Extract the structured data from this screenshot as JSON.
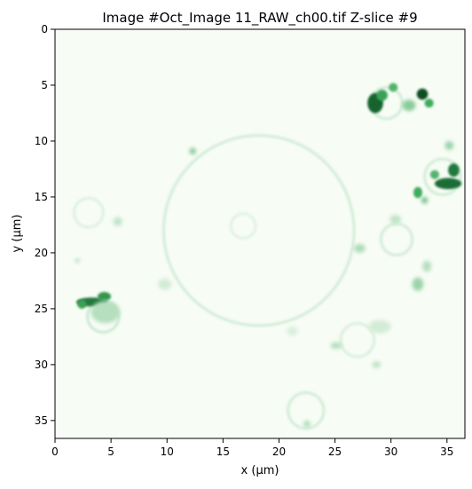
{
  "title": "Image #Oct_Image 11_RAW_ch00.tif Z-slice #9",
  "colormap": {
    "low": "#f7fcf5",
    "high": "#00441b",
    "mid": "#41ab5d"
  },
  "x_axis": {
    "label": "x (μm)",
    "range": [
      0,
      36.6
    ],
    "ticks": [
      0,
      5,
      10,
      15,
      20,
      25,
      30,
      35
    ]
  },
  "y_axis": {
    "label": "y (μm)",
    "range": [
      36.6,
      0
    ],
    "inverted": true,
    "ticks": [
      0,
      5,
      10,
      15,
      20,
      25,
      30,
      35
    ]
  },
  "features": {
    "rings": [
      {
        "cx": 18.2,
        "cy": 18.0,
        "r": 8.5,
        "intensity": 0.1
      },
      {
        "cx": 30.5,
        "cy": 18.8,
        "r": 1.4,
        "intensity": 0.1
      },
      {
        "cx": 4.3,
        "cy": 25.7,
        "r": 1.4,
        "intensity": 0.12
      },
      {
        "cx": 22.4,
        "cy": 34.1,
        "r": 1.6,
        "intensity": 0.1
      },
      {
        "cx": 27.0,
        "cy": 27.8,
        "r": 1.5,
        "intensity": 0.08
      },
      {
        "cx": 29.6,
        "cy": 6.6,
        "r": 1.4,
        "intensity": 0.1
      },
      {
        "cx": 34.6,
        "cy": 13.2,
        "r": 1.6,
        "intensity": 0.1
      },
      {
        "cx": 3.0,
        "cy": 16.4,
        "r": 1.3,
        "intensity": 0.07
      },
      {
        "cx": 16.8,
        "cy": 17.6,
        "r": 1.1,
        "intensity": 0.06
      }
    ],
    "spots": [
      {
        "x": 28.6,
        "y": 6.6,
        "rx": 0.7,
        "ry": 0.9,
        "intensity": 0.85
      },
      {
        "x": 29.2,
        "y": 5.9,
        "rx": 0.5,
        "ry": 0.5,
        "intensity": 0.55
      },
      {
        "x": 30.2,
        "y": 5.2,
        "rx": 0.4,
        "ry": 0.4,
        "intensity": 0.45
      },
      {
        "x": 32.8,
        "y": 5.8,
        "rx": 0.5,
        "ry": 0.5,
        "intensity": 0.95
      },
      {
        "x": 33.4,
        "y": 6.6,
        "rx": 0.4,
        "ry": 0.4,
        "intensity": 0.5
      },
      {
        "x": 31.6,
        "y": 6.8,
        "rx": 0.6,
        "ry": 0.5,
        "intensity": 0.3
      },
      {
        "x": 35.1,
        "y": 13.8,
        "rx": 1.2,
        "ry": 0.5,
        "intensity": 0.8
      },
      {
        "x": 35.6,
        "y": 12.6,
        "rx": 0.5,
        "ry": 0.6,
        "intensity": 0.75
      },
      {
        "x": 33.9,
        "y": 13.0,
        "rx": 0.4,
        "ry": 0.4,
        "intensity": 0.45
      },
      {
        "x": 32.4,
        "y": 14.6,
        "rx": 0.4,
        "ry": 0.5,
        "intensity": 0.5
      },
      {
        "x": 33.0,
        "y": 15.3,
        "rx": 0.3,
        "ry": 0.3,
        "intensity": 0.35
      },
      {
        "x": 35.2,
        "y": 10.4,
        "rx": 0.4,
        "ry": 0.4,
        "intensity": 0.25
      },
      {
        "x": 3.3,
        "y": 24.4,
        "rx": 1.4,
        "ry": 0.4,
        "intensity": 0.75
      },
      {
        "x": 4.4,
        "y": 23.9,
        "rx": 0.6,
        "ry": 0.4,
        "intensity": 0.6
      },
      {
        "x": 2.4,
        "y": 24.6,
        "rx": 0.4,
        "ry": 0.4,
        "intensity": 0.55
      },
      {
        "x": 12.3,
        "y": 10.9,
        "rx": 0.3,
        "ry": 0.3,
        "intensity": 0.3
      },
      {
        "x": 27.2,
        "y": 19.6,
        "rx": 0.5,
        "ry": 0.4,
        "intensity": 0.2
      },
      {
        "x": 32.4,
        "y": 22.8,
        "rx": 0.5,
        "ry": 0.6,
        "intensity": 0.25
      },
      {
        "x": 33.2,
        "y": 21.2,
        "rx": 0.4,
        "ry": 0.5,
        "intensity": 0.18
      },
      {
        "x": 30.4,
        "y": 17.0,
        "rx": 0.5,
        "ry": 0.4,
        "intensity": 0.15
      },
      {
        "x": 22.5,
        "y": 35.3,
        "rx": 0.3,
        "ry": 0.3,
        "intensity": 0.2
      },
      {
        "x": 25.1,
        "y": 28.3,
        "rx": 0.5,
        "ry": 0.3,
        "intensity": 0.18
      },
      {
        "x": 28.7,
        "y": 30.0,
        "rx": 0.4,
        "ry": 0.3,
        "intensity": 0.15
      },
      {
        "x": 2.0,
        "y": 20.7,
        "rx": 0.2,
        "ry": 0.2,
        "intensity": 0.2
      },
      {
        "x": 5.6,
        "y": 17.2,
        "rx": 0.4,
        "ry": 0.4,
        "intensity": 0.15
      },
      {
        "x": 9.8,
        "y": 22.8,
        "rx": 0.6,
        "ry": 0.5,
        "intensity": 0.1
      },
      {
        "x": 21.2,
        "y": 27.0,
        "rx": 0.5,
        "ry": 0.4,
        "intensity": 0.08
      },
      {
        "x": 4.5,
        "y": 25.3,
        "rx": 1.3,
        "ry": 1.0,
        "intensity": 0.18
      },
      {
        "x": 29.0,
        "y": 26.6,
        "rx": 1.0,
        "ry": 0.6,
        "intensity": 0.1
      }
    ]
  }
}
